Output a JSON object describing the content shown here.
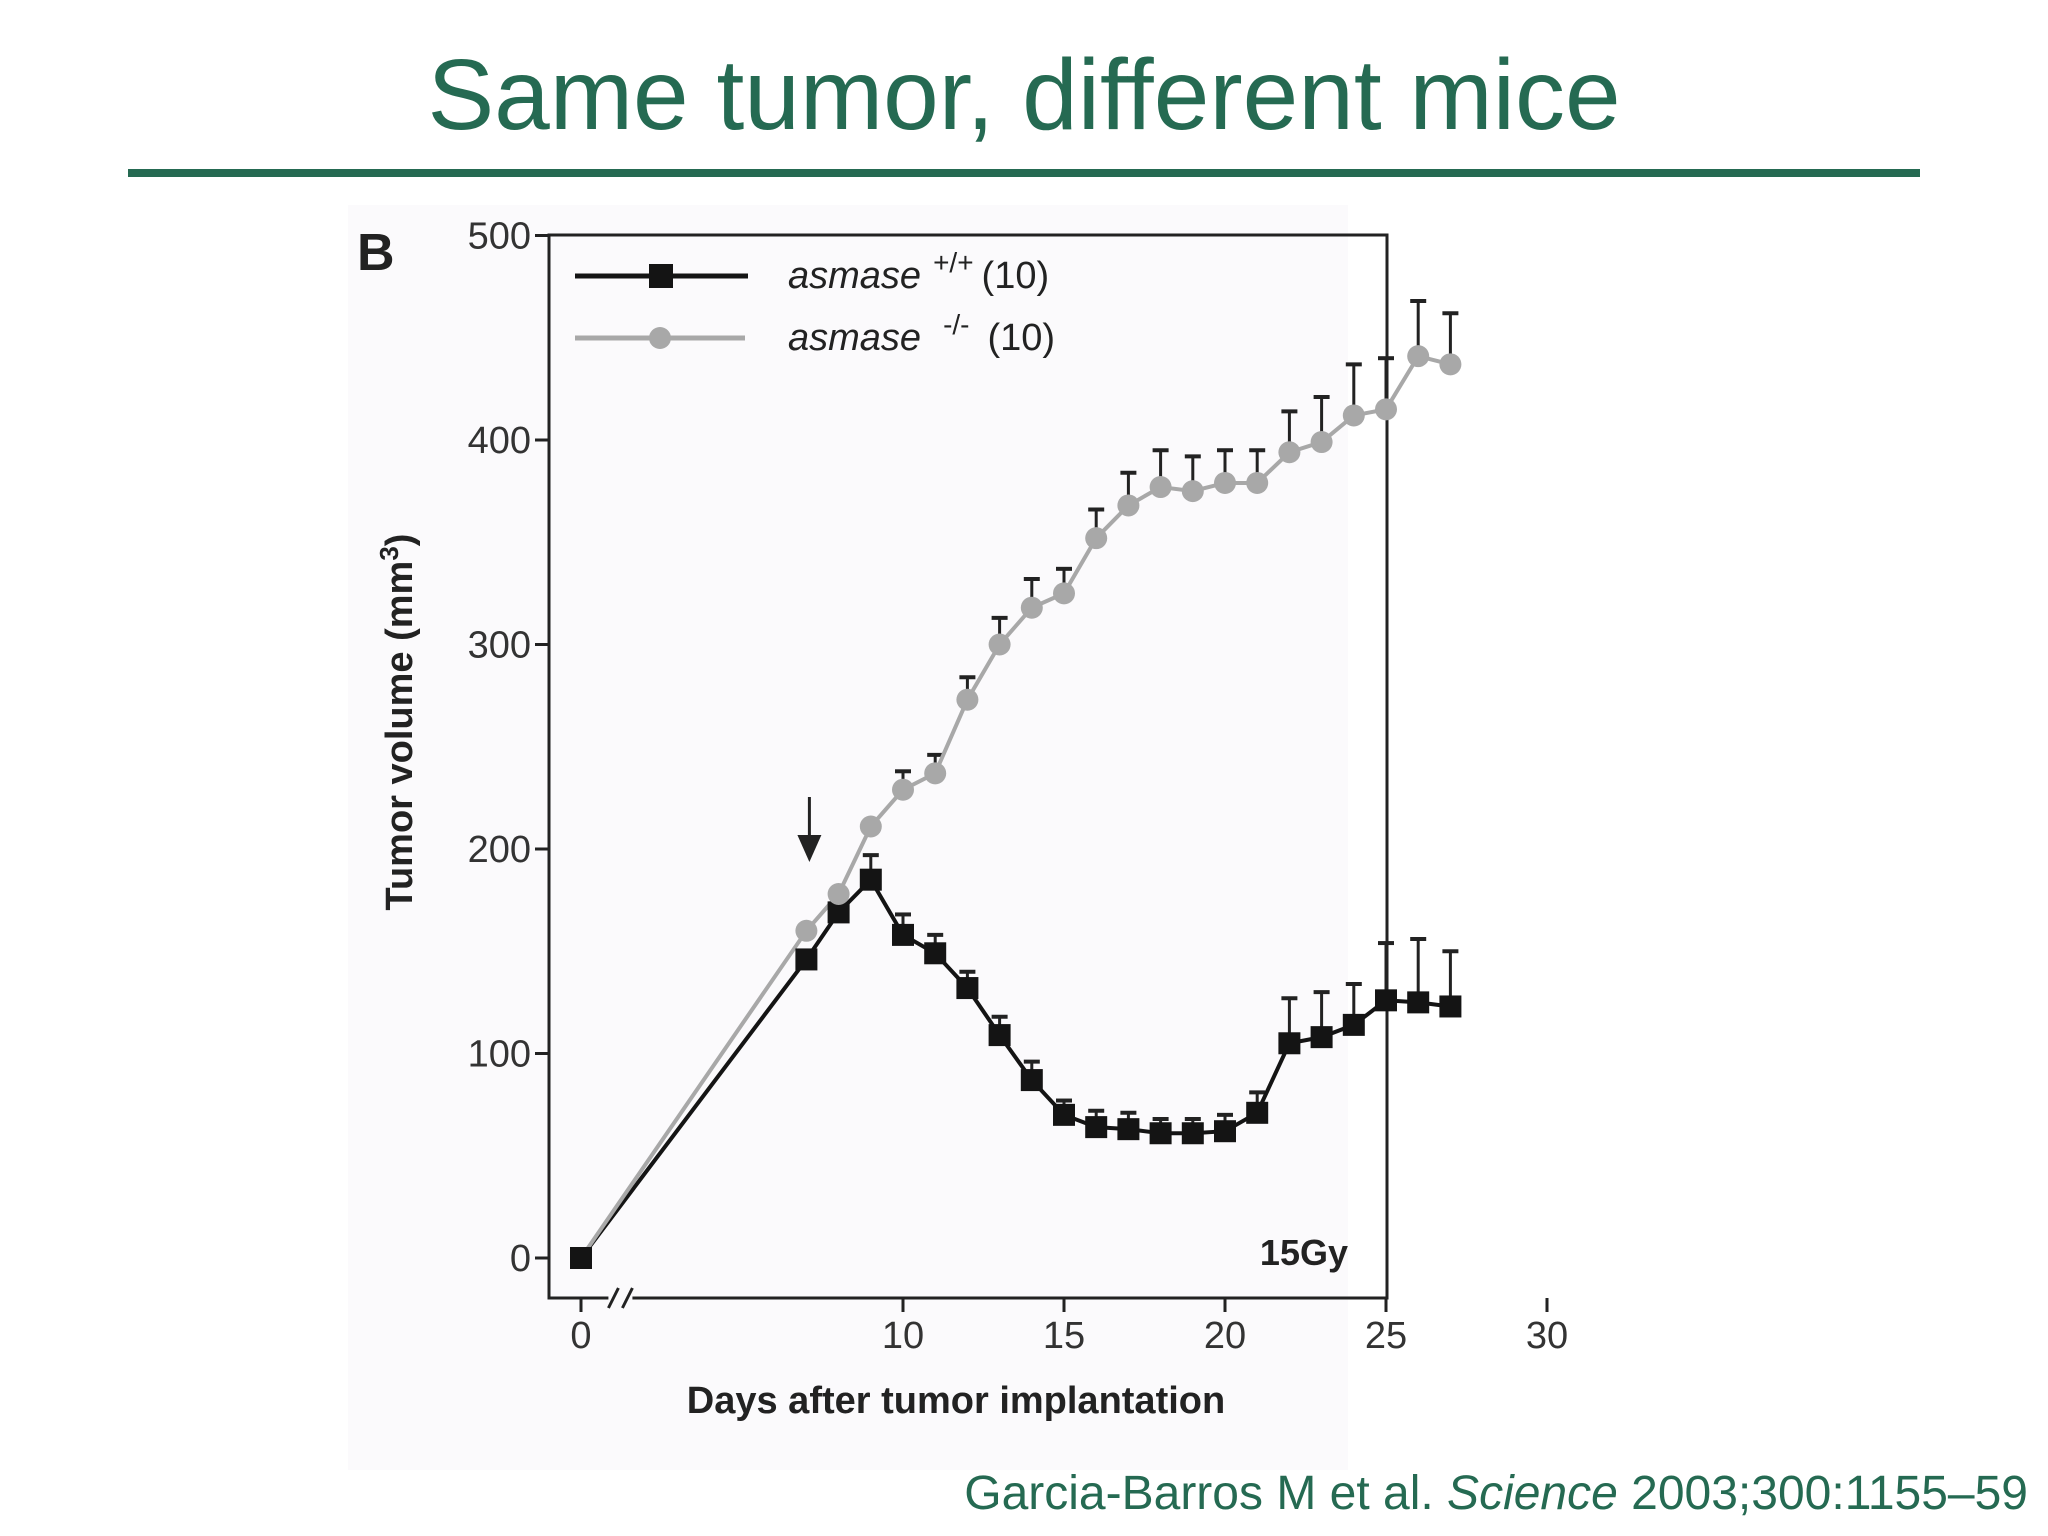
{
  "slide": {
    "title": "Same tumor, different mice",
    "citation_authors": "Garcia-Barros M et al. ",
    "citation_journal": "Science",
    "citation_details": " 2003;300:1155–59",
    "accent_color": "#256a52"
  },
  "chart_data": {
    "type": "line",
    "panel_label": "B",
    "xlabel": "Days after tumor implantation",
    "ylabel": "Tumor volume (mm",
    "ylabel_sup": "3",
    "ylabel_end": ")",
    "xlim": [
      0,
      30
    ],
    "ylim": [
      0,
      500
    ],
    "xticks": [
      0,
      10,
      15,
      20,
      25,
      30
    ],
    "yticks": [
      0,
      100,
      200,
      300,
      400,
      500
    ],
    "axis_break": true,
    "annotation": "15Gy",
    "arrow_at_x": 7,
    "legend_position": "top-left",
    "series": [
      {
        "name": "asmase",
        "sup": "+/+",
        "n": "(10)",
        "color": "#141414",
        "marker": "square",
        "x": [
          0,
          7,
          8,
          9,
          10,
          11,
          12,
          13,
          14,
          15,
          16,
          17,
          18,
          19,
          20,
          21,
          22,
          23,
          24,
          25,
          26,
          27
        ],
        "y": [
          0,
          146,
          169,
          185,
          158,
          149,
          132,
          109,
          87,
          70,
          64,
          63,
          61,
          61,
          62,
          71,
          105,
          108,
          114,
          126,
          125,
          123
        ],
        "err": [
          0,
          0,
          10,
          12,
          10,
          9,
          8,
          9,
          9,
          7,
          8,
          8,
          7,
          7,
          8,
          10,
          22,
          22,
          20,
          28,
          31,
          27
        ]
      },
      {
        "name": "asmase",
        "sup": "-/-",
        "n": "(10)",
        "color": "#a8a8a8",
        "marker": "circle",
        "x": [
          0,
          7,
          8,
          9,
          10,
          11,
          12,
          13,
          14,
          15,
          16,
          17,
          18,
          19,
          20,
          21,
          22,
          23,
          24,
          25,
          26,
          27
        ],
        "y": [
          0,
          160,
          178,
          211,
          229,
          237,
          273,
          300,
          318,
          325,
          352,
          368,
          377,
          375,
          379,
          379,
          394,
          399,
          412,
          415,
          441,
          437
        ],
        "err": [
          0,
          0,
          0,
          0,
          9,
          9,
          11,
          13,
          14,
          12,
          14,
          16,
          18,
          17,
          16,
          16,
          20,
          22,
          25,
          25,
          27,
          25
        ]
      }
    ]
  }
}
